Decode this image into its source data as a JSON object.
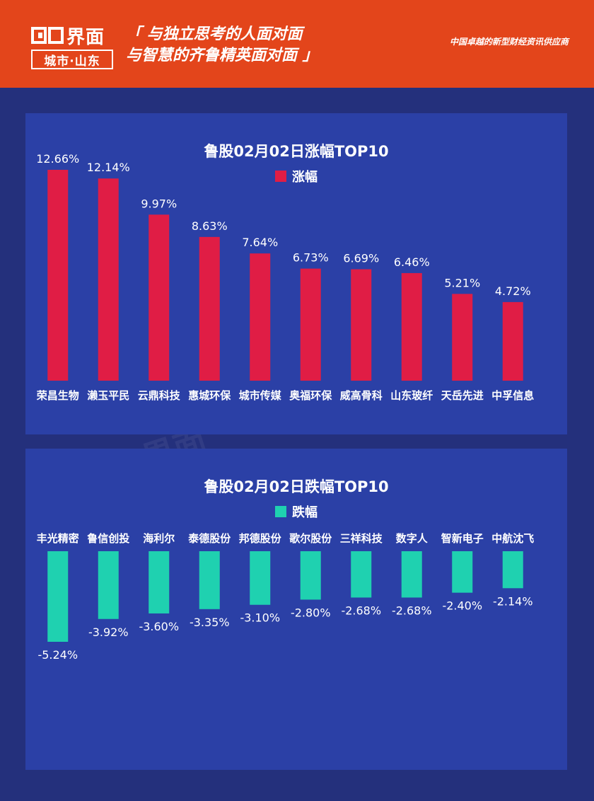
{
  "header": {
    "logo_brand": "界面",
    "logo_sub": "城市·山东",
    "slogan_line1": "「 与独立思考的人面对面",
    "slogan_line2": "与智慧的齐鲁精英面对面 」",
    "tagline": "中国卓越的新型财经资讯供应商",
    "background_color": "#e3451b"
  },
  "chart_data": [
    {
      "type": "bar",
      "title": "鲁股02月02日涨幅TOP10",
      "categories": [
        "荣昌生物",
        "濑玉平民",
        "云鼎科技",
        "惠城环保",
        "城市传媒",
        "奥福环保",
        "威高骨科",
        "山东玻纤",
        "天岳先进",
        "中孚信息"
      ],
      "series": [
        {
          "name": "涨幅",
          "values": [
            12.66,
            12.14,
            9.97,
            8.63,
            7.64,
            6.73,
            6.69,
            6.46,
            5.21,
            4.72
          ],
          "color": "#e01d45"
        }
      ],
      "value_labels": [
        "12.66%",
        "12.14%",
        "9.97%",
        "8.63%",
        "7.64%",
        "6.73%",
        "6.69%",
        "6.46%",
        "5.21%",
        "4.72%"
      ],
      "ylim": [
        0,
        12.66
      ],
      "legend": "top-center",
      "grid": false
    },
    {
      "type": "bar",
      "title": "鲁股02月02日跌幅TOP10",
      "categories": [
        "丰光精密",
        "鲁信创投",
        "海利尔",
        "泰德股份",
        "邦德股份",
        "歌尔股份",
        "三祥科技",
        "数字人",
        "智新电子",
        "中航沈飞"
      ],
      "series": [
        {
          "name": "跌幅",
          "values": [
            -5.24,
            -3.92,
            -3.6,
            -3.35,
            -3.1,
            -2.8,
            -2.68,
            -2.68,
            -2.4,
            -2.14
          ],
          "color": "#1fd1b0"
        }
      ],
      "value_labels": [
        "-5.24%",
        "-3.92%",
        "-3.60%",
        "-3.35%",
        "-3.10%",
        "-2.80%",
        "-2.68%",
        "-2.68%",
        "-2.40%",
        "-2.14%"
      ],
      "ylim": [
        -5.24,
        0
      ],
      "legend": "top-center",
      "grid": false
    }
  ]
}
